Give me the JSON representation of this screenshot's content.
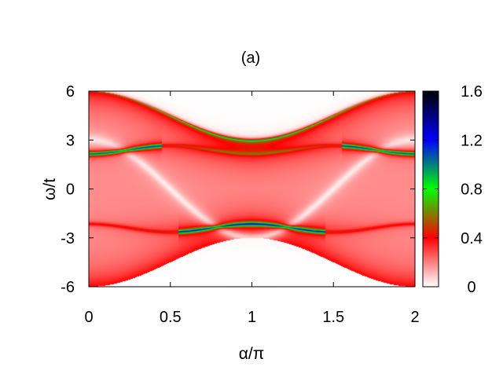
{
  "chart_data": {
    "type": "heatmap",
    "title": "(a)",
    "xlabel": "α/π",
    "ylabel": "ω/t",
    "xlim": [
      0,
      2
    ],
    "ylim": [
      -6,
      6
    ],
    "x_ticks": [
      "0",
      "0.5",
      "1",
      "1.5",
      "2"
    ],
    "x_tick_values": [
      0,
      0.5,
      1,
      1.5,
      2
    ],
    "y_ticks": [
      "6",
      "3",
      "0",
      "-3",
      "-6"
    ],
    "y_tick_values": [
      6,
      3,
      0,
      -3,
      -6
    ],
    "colorbar": {
      "range": [
        0,
        1.6
      ],
      "ticks": [
        "1.6",
        "1.2",
        "0.8",
        "0.4",
        "0"
      ],
      "tick_values": [
        1.6,
        1.2,
        0.8,
        0.4,
        0
      ],
      "stops": [
        {
          "value": 0.0,
          "color": "#ffffff"
        },
        {
          "value": 0.4,
          "color": "#ff0000"
        },
        {
          "value": 0.8,
          "color": "#00ff00"
        },
        {
          "value": 1.2,
          "color": "#0000ff"
        },
        {
          "value": 1.6,
          "color": "#000000"
        }
      ]
    },
    "grid": false,
    "features": {
      "band_edges": "ω = ±(3 + 3·cos²(α/2)) outer envelope; intensity ~0.4 in filled region",
      "bright_branches": [
        {
          "alpha_pi": [
            0,
            0.2
          ],
          "omega": [
            2.0,
            2.6
          ],
          "intensity": 1.2
        },
        {
          "alpha_pi": [
            1.8,
            2
          ],
          "omega": [
            2.6,
            2.0
          ],
          "intensity": 1.2
        },
        {
          "alpha_pi": [
            0.7,
            1.3
          ],
          "omega": [
            -2.2,
            -2.2
          ],
          "intensity": 1.0
        }
      ]
    }
  }
}
